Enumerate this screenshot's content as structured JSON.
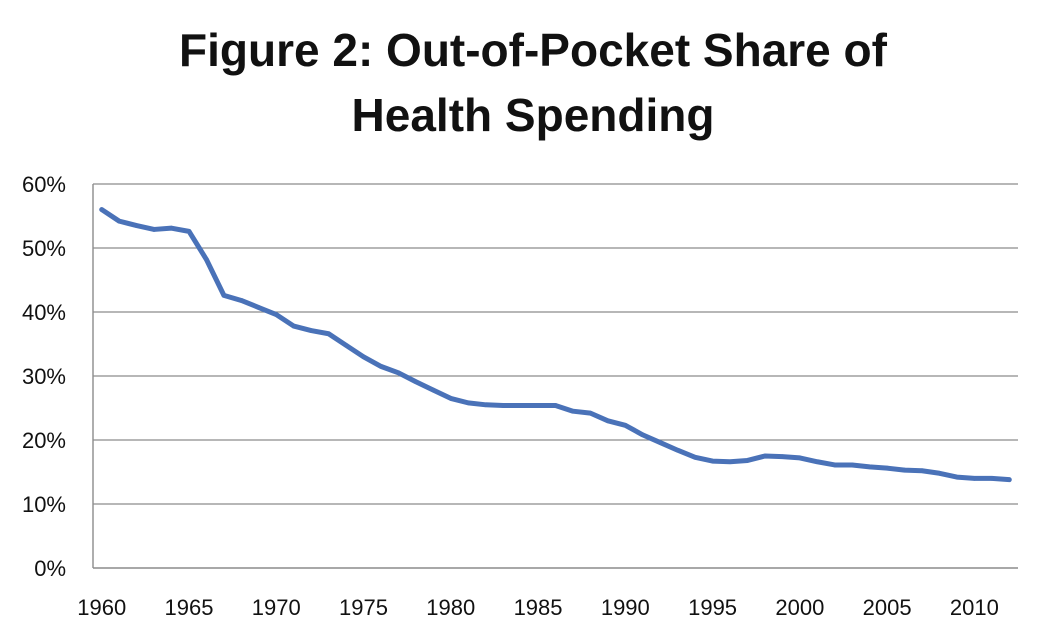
{
  "chart_data": {
    "type": "line",
    "title_lines": [
      "Figure 2: Out-of-Pocket Share of",
      "Health Spending"
    ],
    "xlabel": "",
    "ylabel": "",
    "xlim": [
      1959.5,
      2012.5
    ],
    "ylim": [
      0,
      60
    ],
    "y_ticks": [
      0,
      10,
      20,
      30,
      40,
      50,
      60
    ],
    "y_tick_labels": [
      "0%",
      "10%",
      "20%",
      "30%",
      "40%",
      "50%",
      "60%"
    ],
    "x_ticks": [
      1960,
      1965,
      1970,
      1975,
      1980,
      1985,
      1990,
      1995,
      2000,
      2005,
      2010
    ],
    "x_tick_labels": [
      "1960",
      "1965",
      "1970",
      "1975",
      "1980",
      "1985",
      "1990",
      "1995",
      "2000",
      "2005",
      "2010"
    ],
    "grid": true,
    "legend": "none",
    "series": [
      {
        "name": "Out-of-Pocket Share",
        "color": "#4a72b8",
        "x": [
          1960,
          1961,
          1962,
          1963,
          1964,
          1965,
          1966,
          1967,
          1968,
          1969,
          1970,
          1971,
          1972,
          1973,
          1974,
          1975,
          1976,
          1977,
          1978,
          1979,
          1980,
          1981,
          1982,
          1983,
          1984,
          1985,
          1986,
          1987,
          1988,
          1989,
          1990,
          1991,
          1992,
          1993,
          1994,
          1995,
          1996,
          1997,
          1998,
          1999,
          2000,
          2001,
          2002,
          2003,
          2004,
          2005,
          2006,
          2007,
          2008,
          2009,
          2010,
          2011,
          2012
        ],
        "values": [
          56.0,
          54.2,
          53.5,
          52.9,
          53.1,
          52.6,
          48.2,
          42.6,
          41.8,
          40.7,
          39.6,
          37.8,
          37.1,
          36.6,
          34.8,
          33.0,
          31.5,
          30.5,
          29.1,
          27.8,
          26.5,
          25.8,
          25.5,
          25.4,
          25.4,
          25.4,
          25.4,
          24.5,
          24.2,
          23.0,
          22.3,
          20.8,
          19.6,
          18.4,
          17.3,
          16.7,
          16.6,
          16.8,
          17.5,
          17.4,
          17.2,
          16.6,
          16.1,
          16.1,
          15.8,
          15.6,
          15.3,
          15.2,
          14.8,
          14.2,
          14.0,
          14.0,
          13.8
        ]
      }
    ]
  }
}
